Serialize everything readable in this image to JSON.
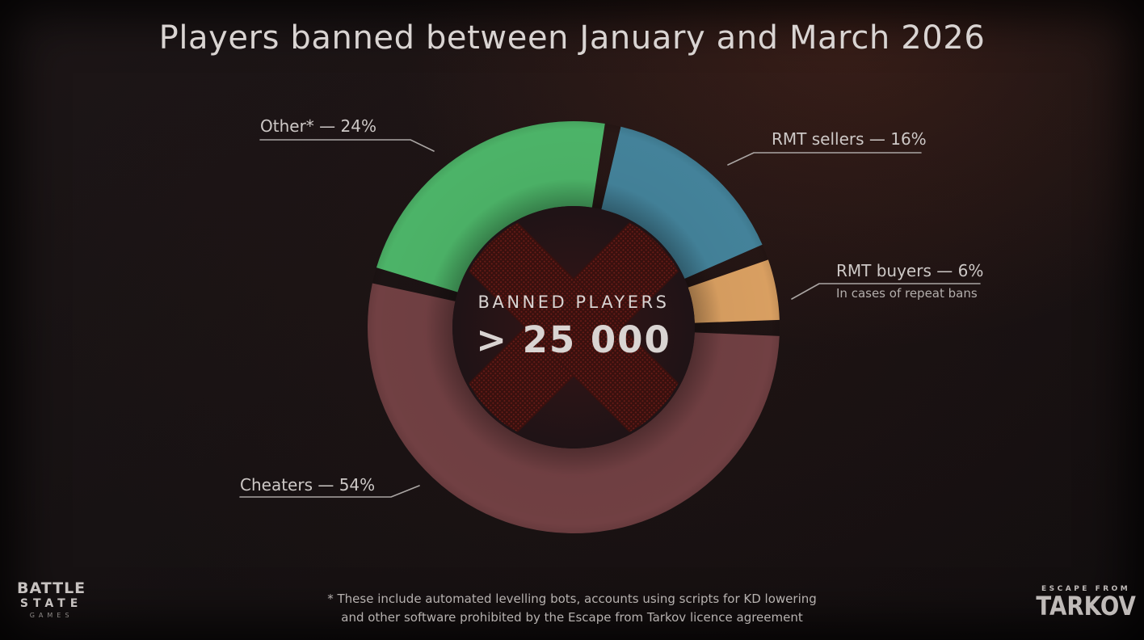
{
  "title": "Players banned between January and March 2026",
  "chart_data": {
    "type": "pie",
    "subtype": "donut",
    "title": "Players banned between January and March 2026",
    "center": {
      "label": "BANNED PLAYERS",
      "value": "> 25 000"
    },
    "segments": [
      {
        "name": "RMT sellers",
        "value_pct": 16,
        "color": "#45859d",
        "callout": "RMT sellers — 16%"
      },
      {
        "name": "RMT buyers",
        "value_pct": 6,
        "color": "#dda263",
        "callout": "RMT buyers — 6%",
        "subnote": "In cases of repeat bans"
      },
      {
        "name": "Cheaters",
        "value_pct": 54,
        "color": "#734144",
        "callout": "Cheaters — 54%"
      },
      {
        "name": "Other*",
        "value_pct": 24,
        "color": "#4eb76a",
        "callout": "Other* — 24%"
      }
    ],
    "rotation_deg": 11,
    "gap_deg": 4.5,
    "legend_position": "callout-labels",
    "watermark": {
      "shape": "x-cross-halftone",
      "dot_color": "#6f1d18",
      "base_color": "#3a100e"
    },
    "center_circle_color": "#1f1316"
  },
  "footnote": {
    "line1": "* These include automated levelling bots, accounts using scripts for KD lowering",
    "line2": "and other software prohibited by the Escape from Tarkov licence agreement"
  },
  "logos": {
    "battlestate": {
      "line1": "BATTLE",
      "line2": "STATE",
      "line3": "GAMES"
    },
    "tarkov": {
      "line1": "ESCAPE FROM",
      "line2": "TARKOV"
    }
  }
}
